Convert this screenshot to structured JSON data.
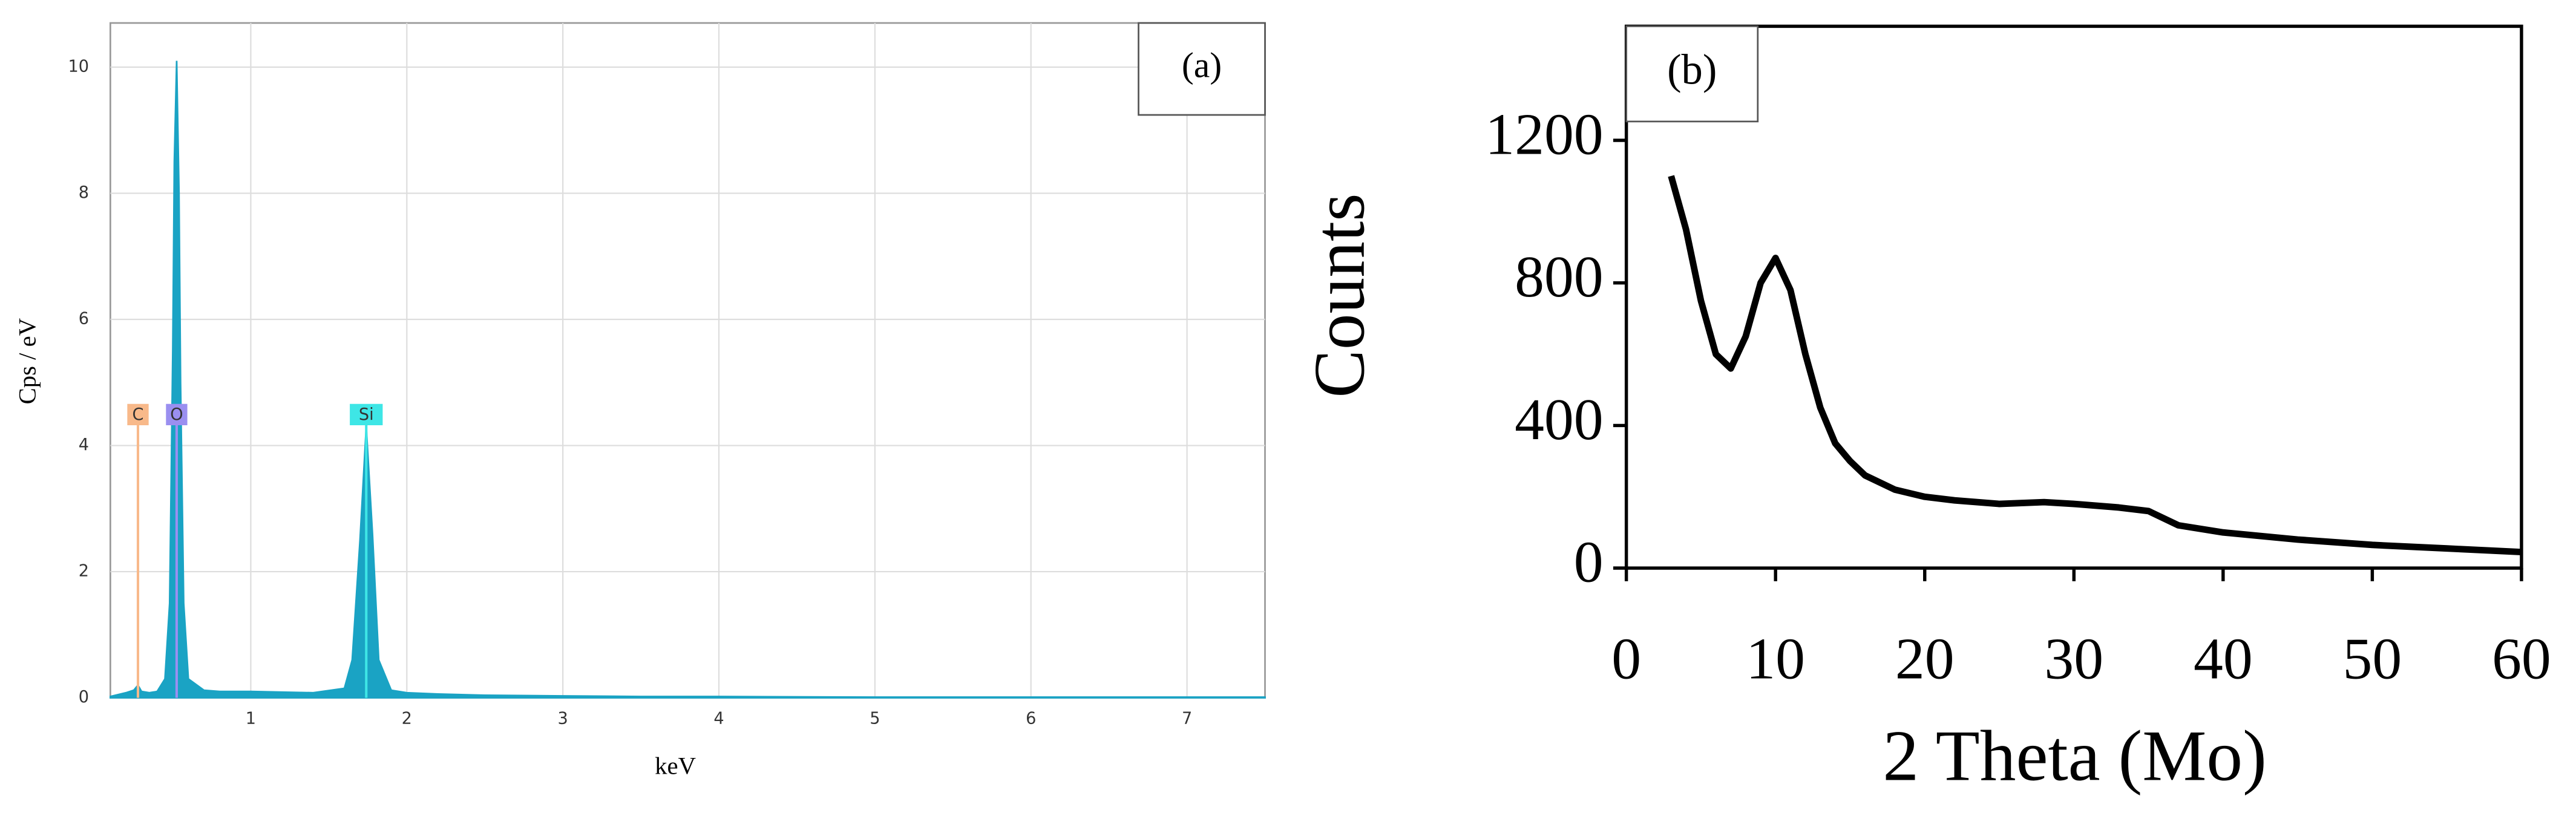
{
  "chart_data": [
    {
      "type": "area",
      "annotation": "(a)",
      "x_label": "keV",
      "y_label": "Cps / eV",
      "x": [
        0.1,
        0.15,
        0.2,
        0.25,
        0.277,
        0.3,
        0.35,
        0.4,
        0.45,
        0.48,
        0.5,
        0.51,
        0.525,
        0.54,
        0.55,
        0.57,
        0.6,
        0.7,
        0.8,
        1.0,
        1.2,
        1.4,
        1.6,
        1.65,
        1.7,
        1.74,
        1.78,
        1.82,
        1.9,
        2.0,
        2.2,
        2.5,
        3.0,
        3.5,
        4.0,
        5.0,
        6.0,
        7.0,
        7.5
      ],
      "values": [
        0.02,
        0.05,
        0.08,
        0.12,
        0.2,
        0.1,
        0.08,
        0.1,
        0.3,
        1.5,
        5.5,
        8.5,
        10.1,
        8.0,
        5.0,
        1.5,
        0.3,
        0.12,
        0.1,
        0.1,
        0.09,
        0.08,
        0.15,
        0.6,
        2.5,
        4.3,
        2.6,
        0.6,
        0.12,
        0.08,
        0.06,
        0.04,
        0.03,
        0.02,
        0.02,
        0.01,
        0.01,
        0.01,
        0.01
      ],
      "color": "#1aa3c4",
      "elements": [
        {
          "label": "C",
          "energy": 0.277,
          "color": "#f8b98a"
        },
        {
          "label": "O",
          "energy": 0.525,
          "color": "#9a8ff0"
        },
        {
          "label": "Si",
          "energy": 1.74,
          "color": "#3ee6e6"
        }
      ],
      "xlim": [
        0.1,
        7.5
      ],
      "xticks": [
        1,
        2,
        3,
        4,
        5,
        6,
        7
      ],
      "ylim": [
        0,
        10.7
      ],
      "yticks": [
        0,
        2,
        4,
        6,
        8,
        10
      ],
      "grid": true
    },
    {
      "type": "line",
      "annotation": "(b)",
      "x_label": "2 Theta (Mo)",
      "y_label": "Counts",
      "x": [
        3,
        4,
        5,
        6,
        7,
        8,
        9,
        10,
        11,
        12,
        13,
        14,
        15,
        16,
        18,
        20,
        22,
        25,
        28,
        30,
        33,
        35,
        37,
        40,
        45,
        50,
        55,
        60
      ],
      "values": [
        1100,
        950,
        750,
        600,
        560,
        650,
        800,
        870,
        780,
        600,
        450,
        350,
        300,
        260,
        220,
        200,
        190,
        180,
        185,
        180,
        170,
        160,
        120,
        100,
        80,
        65,
        55,
        45
      ],
      "color": "#000000",
      "xlim": [
        0,
        60
      ],
      "xticks": [
        0,
        10,
        20,
        30,
        40,
        50,
        60
      ],
      "ylim": [
        0,
        1520
      ],
      "yticks": [
        0,
        400,
        800,
        1200
      ],
      "grid": false
    }
  ]
}
